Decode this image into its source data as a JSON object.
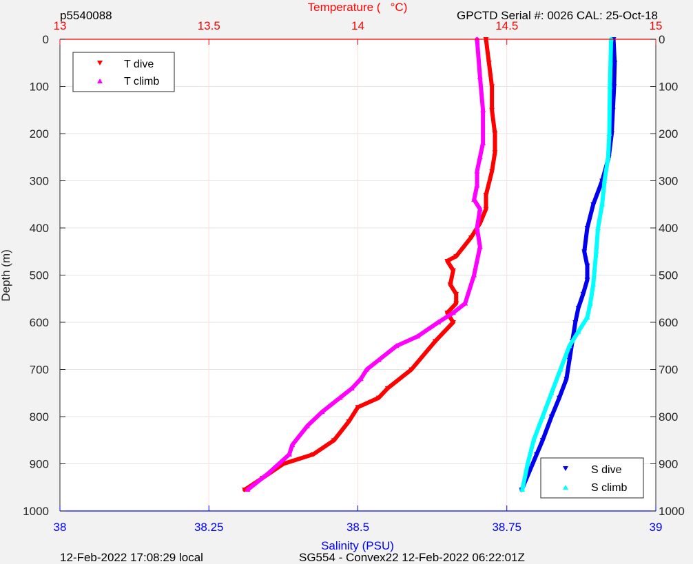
{
  "header": {
    "left": "p5540088",
    "right": "GPCTD Serial #: 0026 CAL: 25-Oct-18"
  },
  "footer": {
    "left": "12-Feb-2022 17:08:29 local",
    "right": "SG554 - Convex22 12-Feb-2022 06:22:01Z"
  },
  "colors": {
    "temperature_axis": "#ff0000",
    "salinity_axis": "#0000ff",
    "t_dive": "#ff0000",
    "t_climb": "#ff00ff",
    "s_dive": "#0000ee",
    "s_climb": "#00ffff"
  },
  "chart_data": {
    "type": "line",
    "ylabel": "Depth (m)",
    "ylim": [
      1000,
      0
    ],
    "yticks": [
      "0",
      "100",
      "200",
      "300",
      "400",
      "500",
      "600",
      "700",
      "800",
      "900",
      "1000"
    ],
    "top_xlabel": "Temperature (   °C)",
    "top_xlim": [
      13,
      15
    ],
    "top_xticks": [
      "13",
      "13.5",
      "14",
      "14.5",
      "15"
    ],
    "bottom_xlabel": "Salinity (PSU)",
    "bottom_xlim": [
      38,
      39
    ],
    "bottom_xticks": [
      "38",
      "38.25",
      "38.5",
      "38.75",
      "39"
    ],
    "grid": true,
    "legends": [
      {
        "placement": "top-left",
        "entries": [
          "T dive",
          "T climb"
        ]
      },
      {
        "placement": "bottom-right",
        "entries": [
          "S dive",
          "S climb"
        ]
      }
    ],
    "series": [
      {
        "name": "T dive",
        "axis": "temperature",
        "marker": "down-triangle",
        "x": [
          14.43,
          14.44,
          14.45,
          14.45,
          14.46,
          14.46,
          14.45,
          14.43,
          14.43,
          14.41,
          14.38,
          14.33,
          14.3,
          14.32,
          14.31,
          14.33,
          14.33,
          14.3,
          14.32,
          14.26,
          14.18,
          14.1,
          14.07,
          14.0,
          13.97,
          13.92,
          13.85,
          13.75,
          13.68,
          13.62
        ],
        "y": [
          0,
          50,
          100,
          150,
          200,
          240,
          280,
          330,
          360,
          390,
          420,
          460,
          470,
          490,
          520,
          540,
          560,
          580,
          600,
          640,
          700,
          740,
          760,
          780,
          810,
          850,
          880,
          900,
          930,
          955
        ]
      },
      {
        "name": "T climb",
        "axis": "temperature",
        "marker": "up-triangle",
        "x": [
          13.63,
          13.7,
          13.77,
          13.78,
          13.83,
          13.88,
          13.94,
          13.98,
          14.01,
          14.03,
          14.07,
          14.13,
          14.2,
          14.27,
          14.32,
          14.36,
          14.39,
          14.41,
          14.4,
          14.41,
          14.39,
          14.4,
          14.4,
          14.41,
          14.42,
          14.42,
          14.41,
          14.4
        ],
        "y": [
          955,
          920,
          880,
          860,
          820,
          790,
          760,
          740,
          720,
          700,
          680,
          650,
          630,
          600,
          580,
          560,
          500,
          440,
          400,
          360,
          340,
          310,
          280,
          250,
          220,
          150,
          80,
          0
        ]
      },
      {
        "name": "S dive",
        "axis": "salinity",
        "marker": "down-triangle",
        "x": [
          38.929,
          38.931,
          38.93,
          38.928,
          38.926,
          38.921,
          38.91,
          38.895,
          38.885,
          38.88,
          38.885,
          38.885,
          38.878,
          38.87,
          38.865,
          38.86,
          38.855,
          38.85,
          38.838,
          38.825,
          38.81,
          38.8,
          38.79,
          38.78,
          38.775
        ],
        "y": [
          0,
          50,
          100,
          150,
          200,
          250,
          300,
          350,
          400,
          450,
          480,
          510,
          540,
          570,
          600,
          640,
          680,
          720,
          760,
          800,
          850,
          880,
          910,
          940,
          955
        ]
      },
      {
        "name": "S climb",
        "axis": "salinity",
        "marker": "up-triangle",
        "x": [
          38.776,
          38.785,
          38.795,
          38.81,
          38.825,
          38.84,
          38.855,
          38.87,
          38.885,
          38.89,
          38.895,
          38.9,
          38.903,
          38.91,
          38.914,
          38.92,
          38.922,
          38.923,
          38.925
        ],
        "y": [
          955,
          900,
          850,
          800,
          750,
          700,
          650,
          620,
          590,
          560,
          520,
          450,
          400,
          350,
          300,
          250,
          200,
          100,
          0
        ]
      }
    ]
  }
}
